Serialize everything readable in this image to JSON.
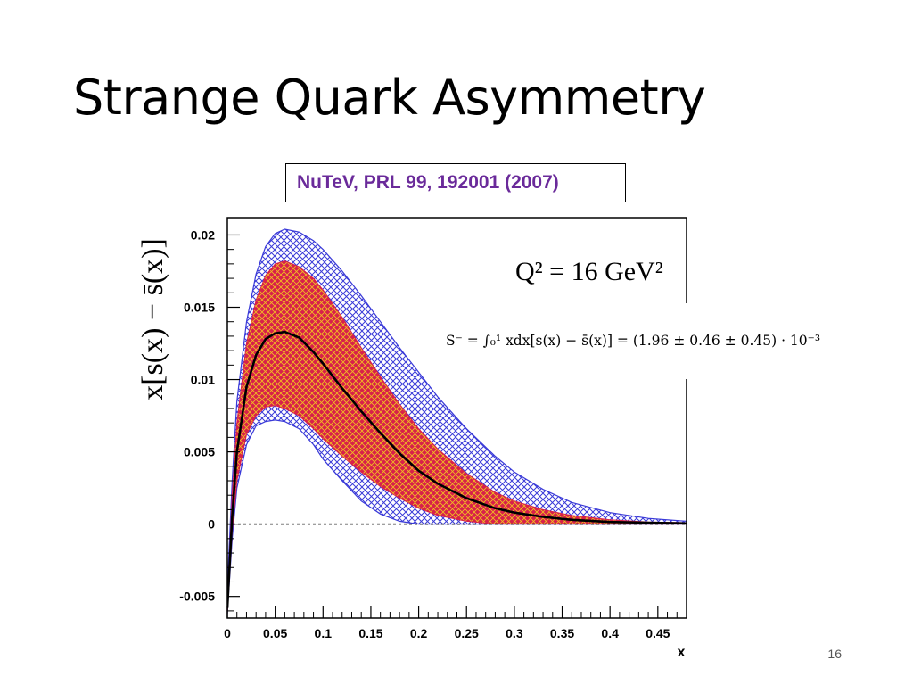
{
  "slide": {
    "title": "Strange Quark Asymmetry",
    "reference": "NuTeV, PRL 99, 192001 (2007)",
    "page_number": "16"
  },
  "annotations": {
    "q2_label": "Q² = 16 GeV²",
    "integral_text": "S⁻ = ∫₀¹ xdx[s(x) − s̄(x)] = (1.96 ± 0.46 ± 0.45) · 10⁻³"
  },
  "colors": {
    "outer_band": "#3a3ad8",
    "inner_band": "#d8204a",
    "inner_hatch": "#f0c020",
    "central": "#000000",
    "reference_text": "#6a2a9a"
  },
  "chart_data": {
    "type": "area",
    "title": "",
    "xlabel": "x",
    "ylabel": "x[s(x) − s̄(x)]",
    "xlim": [
      0,
      0.48
    ],
    "ylim": [
      -0.0065,
      0.0212
    ],
    "x_ticks": [
      "0",
      "0.05",
      "0.1",
      "0.15",
      "0.2",
      "0.25",
      "0.3",
      "0.35",
      "0.4",
      "0.45"
    ],
    "y_ticks": [
      "-0.005",
      "0",
      "0.005",
      "0.01",
      "0.015",
      "0.02"
    ],
    "x_tick_values": [
      0,
      0.05,
      0.1,
      0.15,
      0.2,
      0.25,
      0.3,
      0.35,
      0.4,
      0.45
    ],
    "y_tick_values": [
      -0.005,
      0,
      0.005,
      0.01,
      0.015,
      0.02
    ],
    "grid": false,
    "reference_line": {
      "y": 0,
      "style": "dashed"
    },
    "x": [
      0,
      0.005,
      0.01,
      0.02,
      0.03,
      0.04,
      0.05,
      0.06,
      0.075,
      0.09,
      0.1,
      0.12,
      0.14,
      0.16,
      0.18,
      0.2,
      0.22,
      0.25,
      0.28,
      0.3,
      0.33,
      0.36,
      0.4,
      0.44,
      0.48
    ],
    "series": [
      {
        "role": "outer_band",
        "upper": [
          -0.0045,
          0.003,
          0.0085,
          0.014,
          0.0173,
          0.0192,
          0.0201,
          0.0204,
          0.0202,
          0.0196,
          0.019,
          0.0175,
          0.0158,
          0.014,
          0.0122,
          0.0105,
          0.0088,
          0.0066,
          0.0047,
          0.0036,
          0.0024,
          0.0015,
          0.0008,
          0.0004,
          0.0002
        ],
        "lower": [
          -0.0062,
          -0.001,
          0.0025,
          0.0055,
          0.0068,
          0.0071,
          0.0072,
          0.0071,
          0.0066,
          0.0055,
          0.0045,
          0.003,
          0.0016,
          0.0007,
          0.0002,
          0.0,
          0.0,
          0.0,
          0.0,
          0.0,
          0.0,
          0.0,
          0.0,
          0.0,
          0.0
        ]
      },
      {
        "role": "inner_band",
        "upper": [
          -0.0055,
          0.002,
          0.007,
          0.0125,
          0.0155,
          0.0172,
          0.018,
          0.0182,
          0.0178,
          0.017,
          0.0162,
          0.0143,
          0.0122,
          0.0102,
          0.0083,
          0.0066,
          0.0052,
          0.0035,
          0.0022,
          0.0016,
          0.001,
          0.0006,
          0.0003,
          0.00015,
          0.0001
        ],
        "lower": [
          -0.0062,
          -0.0005,
          0.003,
          0.0062,
          0.0075,
          0.0081,
          0.0082,
          0.008,
          0.0075,
          0.0066,
          0.0059,
          0.0047,
          0.0036,
          0.0026,
          0.0018,
          0.0011,
          0.0006,
          0.0002,
          0.0,
          0.0,
          0.0,
          0.0,
          0.0,
          0.0,
          0.0
        ]
      },
      {
        "role": "central",
        "values": [
          -0.0058,
          0.0005,
          0.005,
          0.0095,
          0.0117,
          0.0128,
          0.0132,
          0.0133,
          0.0129,
          0.0119,
          0.0111,
          0.0094,
          0.0078,
          0.0063,
          0.0049,
          0.0037,
          0.0028,
          0.0018,
          0.0011,
          0.0008,
          0.0005,
          0.0003,
          0.00015,
          0.0001,
          5e-05
        ]
      }
    ]
  }
}
